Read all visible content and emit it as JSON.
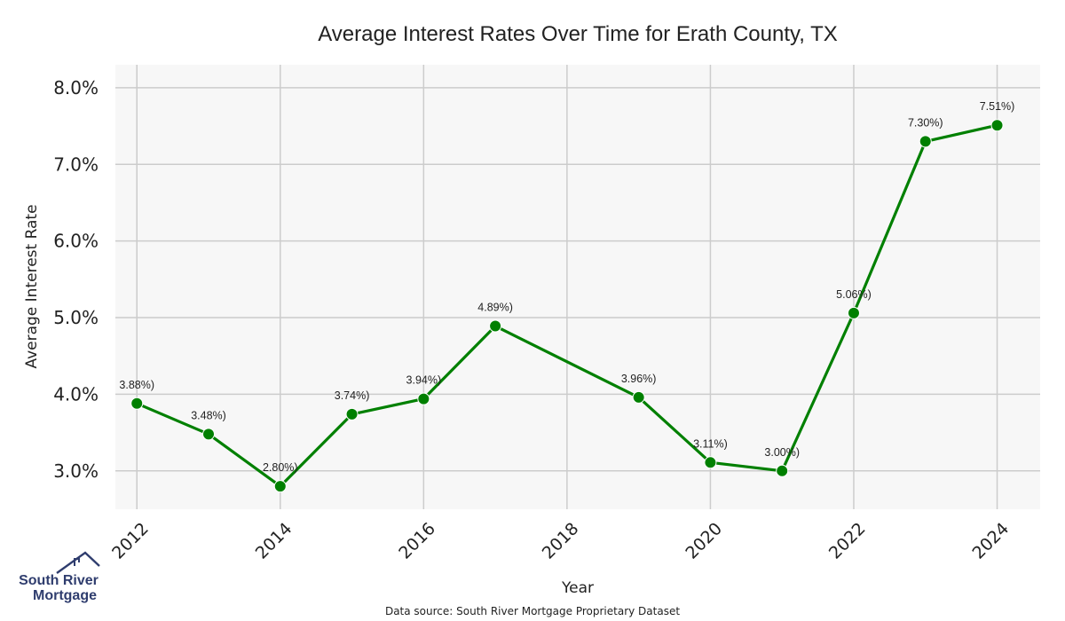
{
  "chart_data": {
    "type": "line",
    "title": "Average Interest Rates Over Time for Erath County, TX",
    "xlabel": "Year",
    "ylabel": "Average Interest Rate",
    "x": [
      2012,
      2013,
      2014,
      2015,
      2016,
      2017,
      2019,
      2020,
      2021,
      2022,
      2023,
      2024
    ],
    "series": [
      {
        "values": [
          3.88,
          3.48,
          2.8,
          3.74,
          3.94,
          4.89,
          3.96,
          3.11,
          3.0,
          5.06,
          7.3,
          7.51
        ],
        "labels": [
          "3.88%)",
          "3.48%)",
          "2.80%)",
          "3.74%)",
          "3.94%)",
          "4.89%)",
          "3.96%)",
          "3.11%)",
          "3.00%)",
          "5.06%)",
          "7.30%)",
          "7.51%)"
        ]
      }
    ],
    "xticks": [
      2012,
      2014,
      2016,
      2018,
      2020,
      2022,
      2024
    ],
    "xtick_labels": [
      "2012",
      "2014",
      "2016",
      "2018",
      "2020",
      "2022",
      "2024"
    ],
    "yticks": [
      3,
      4,
      5,
      6,
      7,
      8
    ],
    "ytick_labels": [
      "3.0%",
      "4.0%",
      "5.0%",
      "6.0%",
      "7.0%",
      "8.0%"
    ],
    "xlim": [
      2011.7,
      2024.6
    ],
    "ylim": [
      2.5,
      8.3
    ],
    "grid": true,
    "line_color": "#008000",
    "plot_background": "#f7f7f7",
    "grid_color": "#cccccc"
  },
  "footer": {
    "source": "Data source: South River Mortgage Proprietary Dataset"
  },
  "logo": {
    "line1": "South River",
    "line2": "Mortgage",
    "color": "#2f3d6e"
  }
}
